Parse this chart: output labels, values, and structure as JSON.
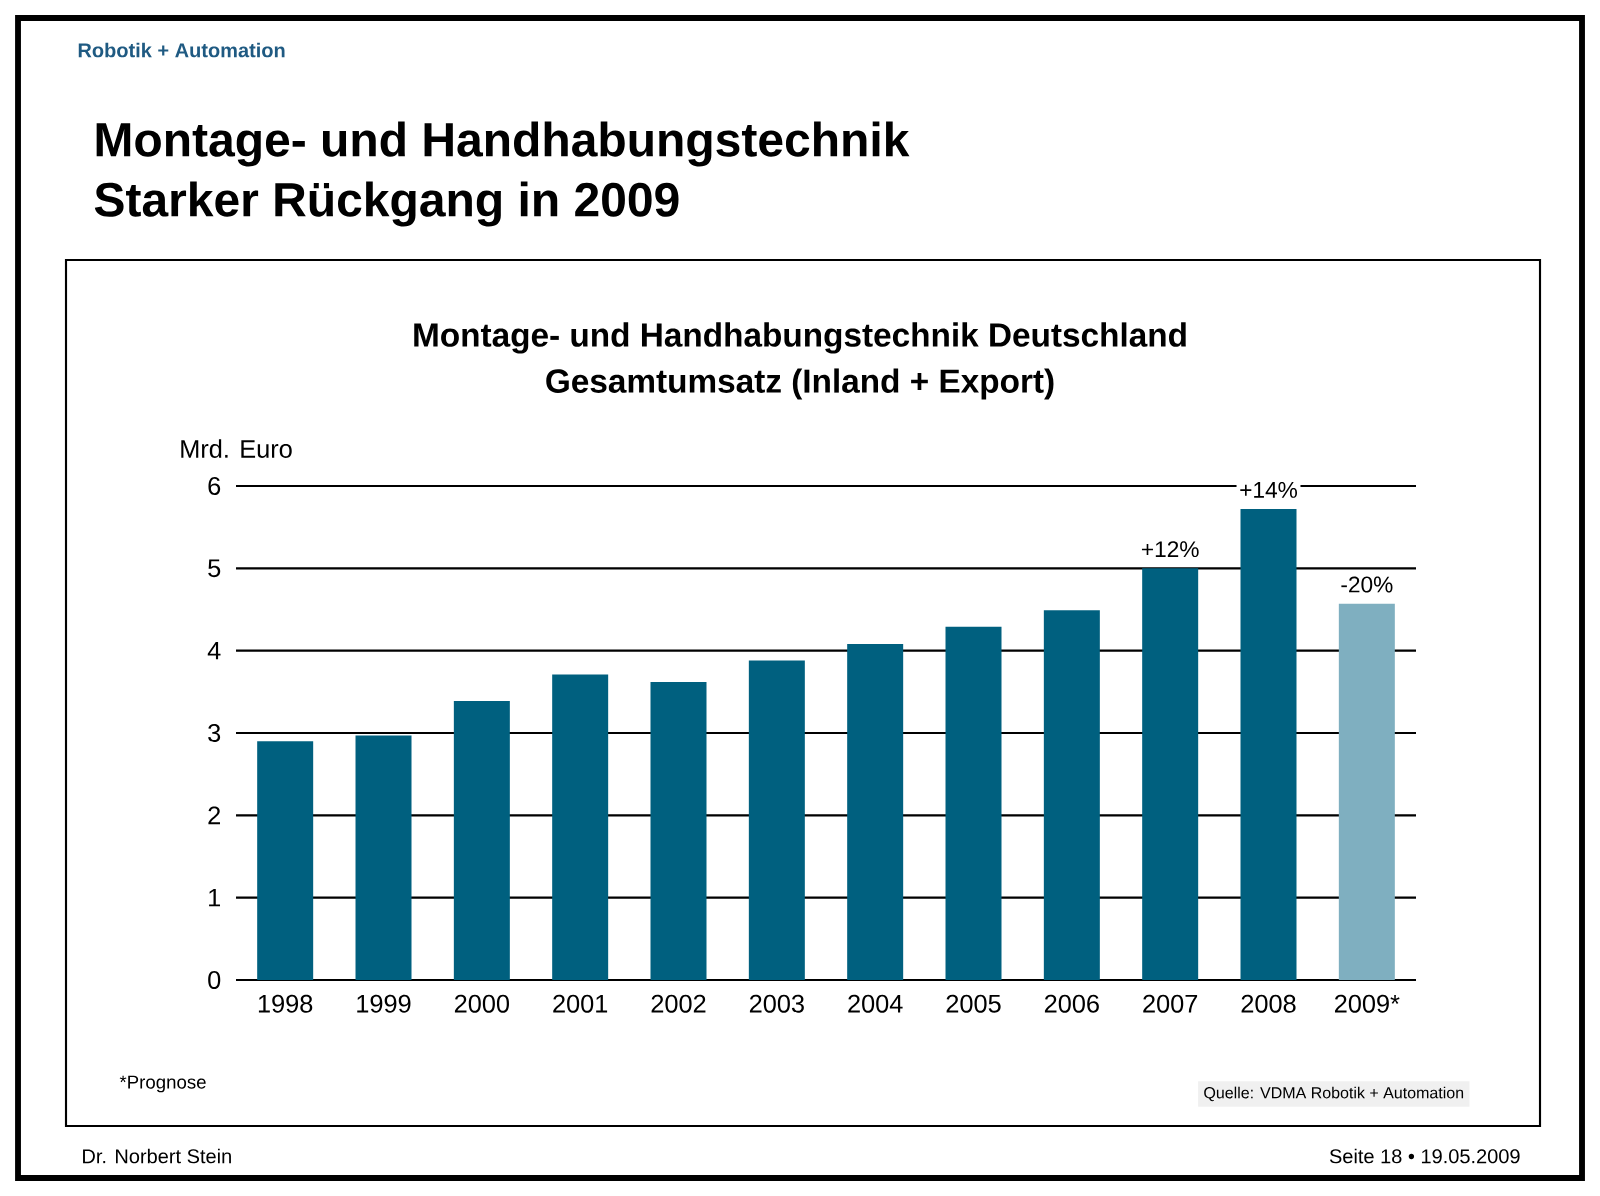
{
  "chart_data": {
    "type": "bar",
    "title": "Montage- und Handhabungstechnik Deutschland",
    "subtitle": "Gesamtumsatz (Inland + Export)",
    "ylabel": "Mrd. Euro",
    "categories": [
      "1998",
      "1999",
      "2000",
      "2001",
      "2002",
      "2003",
      "2004",
      "2005",
      "2006",
      "2007",
      "2008",
      "2009*"
    ],
    "values": [
      2.9,
      2.97,
      3.39,
      3.71,
      3.62,
      3.88,
      4.08,
      4.29,
      4.49,
      5.0,
      5.72,
      4.57
    ],
    "colors": [
      "#00607f",
      "#00607f",
      "#00607f",
      "#00607f",
      "#00607f",
      "#00607f",
      "#00607f",
      "#00607f",
      "#00607f",
      "#00607f",
      "#00607f",
      "#7fafc0"
    ],
    "ylim": [
      0,
      6
    ],
    "yticks": [
      0,
      1,
      2,
      3,
      4,
      5,
      6
    ],
    "grid": "y",
    "annotations": [
      "Robotik + Automation",
      "Montage- und Handhabungstechnik",
      "Starker Rückgang in 2009",
      "*Prognose",
      "Quelle: VDMA Robotik + Automation",
      "Dr. Norbert Stein",
      "Seite 18 • 19.05.2009",
      {
        "text": "+12%",
        "x": "2007",
        "y": 5.0
      },
      {
        "text": "+14%",
        "x": "2008",
        "y": 5.72
      },
      {
        "text": "-20%",
        "x": "2009*",
        "y": 4.57
      }
    ]
  }
}
